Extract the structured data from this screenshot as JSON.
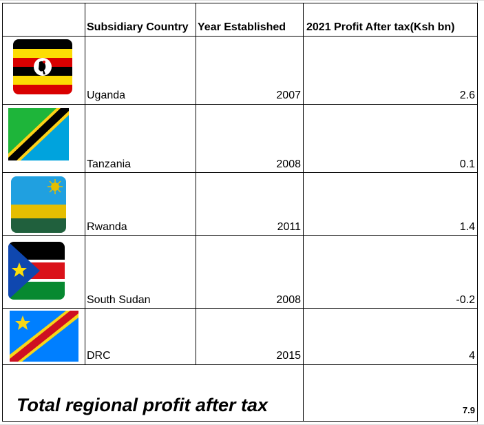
{
  "headers": {
    "country": "Subsidiary Country",
    "year": "Year Established",
    "profit": "2021 Profit After tax(Ksh bn)"
  },
  "rows": [
    {
      "country": "Uganda",
      "year": "2007",
      "profit": "2.6",
      "flag_icon": "uganda-flag-icon"
    },
    {
      "country": "Tanzania",
      "year": "2008",
      "profit": "0.1",
      "flag_icon": "tanzania-flag-icon"
    },
    {
      "country": "Rwanda",
      "year": "2011",
      "profit": "1.4",
      "flag_icon": "rwanda-flag-icon"
    },
    {
      "country": "South Sudan",
      "year": "2008",
      "profit": "-0.2",
      "flag_icon": "south-sudan-flag-icon"
    },
    {
      "country": "DRC",
      "year": "2015",
      "profit": "4",
      "flag_icon": "drc-flag-icon"
    }
  ],
  "total": {
    "label": "Total regional profit after tax",
    "value": "7.9"
  }
}
